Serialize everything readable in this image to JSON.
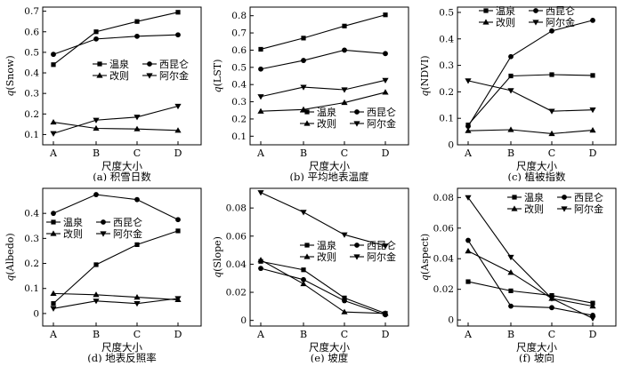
{
  "legend_labels": {
    "wq": "温泉",
    "xkl": "西昆仑",
    "gz": "改则",
    "aej": "阿尔金"
  },
  "chart_data": [
    {
      "type": "line",
      "caption": "(a) 积雪日数",
      "xlabel": "尺度大小",
      "ylabel": "q(Snow)",
      "categories": [
        "A",
        "B",
        "C",
        "D"
      ],
      "ylim": [
        0.05,
        0.72
      ],
      "yticks": [
        "0.1",
        "0.2",
        "0.3",
        "0.4",
        "0.5",
        "0.6",
        "0.7"
      ],
      "legend_position": "center-right",
      "series": [
        {
          "name": "温泉",
          "marker": "square",
          "values": [
            0.44,
            0.6,
            0.65,
            0.695
          ]
        },
        {
          "name": "西昆仑",
          "marker": "circle",
          "values": [
            0.49,
            0.565,
            0.578,
            0.585
          ]
        },
        {
          "name": "改则",
          "marker": "triangle-up",
          "values": [
            0.16,
            0.13,
            0.127,
            0.12
          ]
        },
        {
          "name": "阿尔金",
          "marker": "triangle-down",
          "values": [
            0.105,
            0.17,
            0.185,
            0.238
          ]
        }
      ]
    },
    {
      "type": "line",
      "caption": "(b) 平均地表温度",
      "xlabel": "尺度大小",
      "ylabel": "q(LST)",
      "categories": [
        "A",
        "B",
        "C",
        "D"
      ],
      "ylim": [
        0.05,
        0.85
      ],
      "yticks": [
        "0.1",
        "0.2",
        "0.3",
        "0.4",
        "0.5",
        "0.6",
        "0.7",
        "0.8"
      ],
      "legend_position": "bottom-right",
      "series": [
        {
          "name": "温泉",
          "marker": "square",
          "values": [
            0.605,
            0.67,
            0.74,
            0.805
          ]
        },
        {
          "name": "西昆仑",
          "marker": "circle",
          "values": [
            0.49,
            0.54,
            0.6,
            0.58
          ]
        },
        {
          "name": "改则",
          "marker": "triangle-up",
          "values": [
            0.245,
            0.255,
            0.295,
            0.355
          ]
        },
        {
          "name": "阿尔金",
          "marker": "triangle-down",
          "values": [
            0.33,
            0.385,
            0.37,
            0.425
          ]
        }
      ]
    },
    {
      "type": "line",
      "caption": "(c) 植被指数",
      "xlabel": "尺度大小",
      "ylabel": "q(NDVI)",
      "categories": [
        "A",
        "B",
        "C",
        "D"
      ],
      "ylim": [
        0,
        0.52
      ],
      "yticks": [
        "0",
        "0.1",
        "0.2",
        "0.3",
        "0.4",
        "0.5"
      ],
      "legend_position": "top",
      "series": [
        {
          "name": "温泉",
          "marker": "square",
          "values": [
            0.075,
            0.26,
            0.265,
            0.262
          ]
        },
        {
          "name": "西昆仑",
          "marker": "circle",
          "values": [
            0.07,
            0.333,
            0.43,
            0.47
          ]
        },
        {
          "name": "改则",
          "marker": "triangle-up",
          "values": [
            0.053,
            0.057,
            0.042,
            0.055
          ]
        },
        {
          "name": "阿尔金",
          "marker": "triangle-down",
          "values": [
            0.242,
            0.205,
            0.127,
            0.132
          ]
        }
      ]
    },
    {
      "type": "line",
      "caption": "(d) 地表反照率",
      "xlabel": "尺度大小",
      "ylabel": "q(Albedo)",
      "categories": [
        "A",
        "B",
        "C",
        "D"
      ],
      "ylim": [
        -0.05,
        0.5
      ],
      "yticks": [
        "0",
        "0.1",
        "0.2",
        "0.3",
        "0.4"
      ],
      "legend_position": "left",
      "series": [
        {
          "name": "温泉",
          "marker": "square",
          "values": [
            0.04,
            0.195,
            0.275,
            0.33
          ]
        },
        {
          "name": "西昆仑",
          "marker": "circle",
          "values": [
            0.4,
            0.475,
            0.455,
            0.375
          ]
        },
        {
          "name": "改则",
          "marker": "triangle-up",
          "values": [
            0.08,
            0.075,
            0.065,
            0.055
          ]
        },
        {
          "name": "阿尔金",
          "marker": "triangle-down",
          "values": [
            0.02,
            0.05,
            0.04,
            0.06
          ]
        }
      ]
    },
    {
      "type": "line",
      "caption": "(e) 坡度",
      "xlabel": "尺度大小",
      "ylabel": "q(Slope)",
      "categories": [
        "A",
        "B",
        "C",
        "D"
      ],
      "ylim": [
        -0.004,
        0.094
      ],
      "yticks": [
        "0",
        "0.02",
        "0.04",
        "0.06",
        "0.08"
      ],
      "legend_position": "center-right",
      "series": [
        {
          "name": "温泉",
          "marker": "square",
          "values": [
            0.042,
            0.036,
            0.016,
            0.005
          ]
        },
        {
          "name": "西昆仑",
          "marker": "circle",
          "values": [
            0.037,
            0.029,
            0.014,
            0.004
          ]
        },
        {
          "name": "改则",
          "marker": "triangle-up",
          "values": [
            0.043,
            0.026,
            0.006,
            0.005
          ]
        },
        {
          "name": "阿尔金",
          "marker": "triangle-down",
          "values": [
            0.091,
            0.077,
            0.061,
            0.053
          ]
        }
      ]
    },
    {
      "type": "line",
      "caption": "(f) 坡向",
      "xlabel": "尺度大小",
      "ylabel": "q(Aspect)",
      "categories": [
        "A",
        "B",
        "C",
        "D"
      ],
      "ylim": [
        -0.004,
        0.086
      ],
      "yticks": [
        "0",
        "0.02",
        "0.04",
        "0.06",
        "0.08"
      ],
      "legend_position": "top-right",
      "series": [
        {
          "name": "温泉",
          "marker": "square",
          "values": [
            0.025,
            0.019,
            0.016,
            0.011
          ]
        },
        {
          "name": "西昆仑",
          "marker": "circle",
          "values": [
            0.052,
            0.009,
            0.008,
            0.003
          ]
        },
        {
          "name": "改则",
          "marker": "triangle-up",
          "values": [
            0.045,
            0.031,
            0.014,
            0.009
          ]
        },
        {
          "name": "阿尔金",
          "marker": "triangle-down",
          "values": [
            0.08,
            0.041,
            0.014,
            0.001
          ]
        }
      ]
    }
  ]
}
